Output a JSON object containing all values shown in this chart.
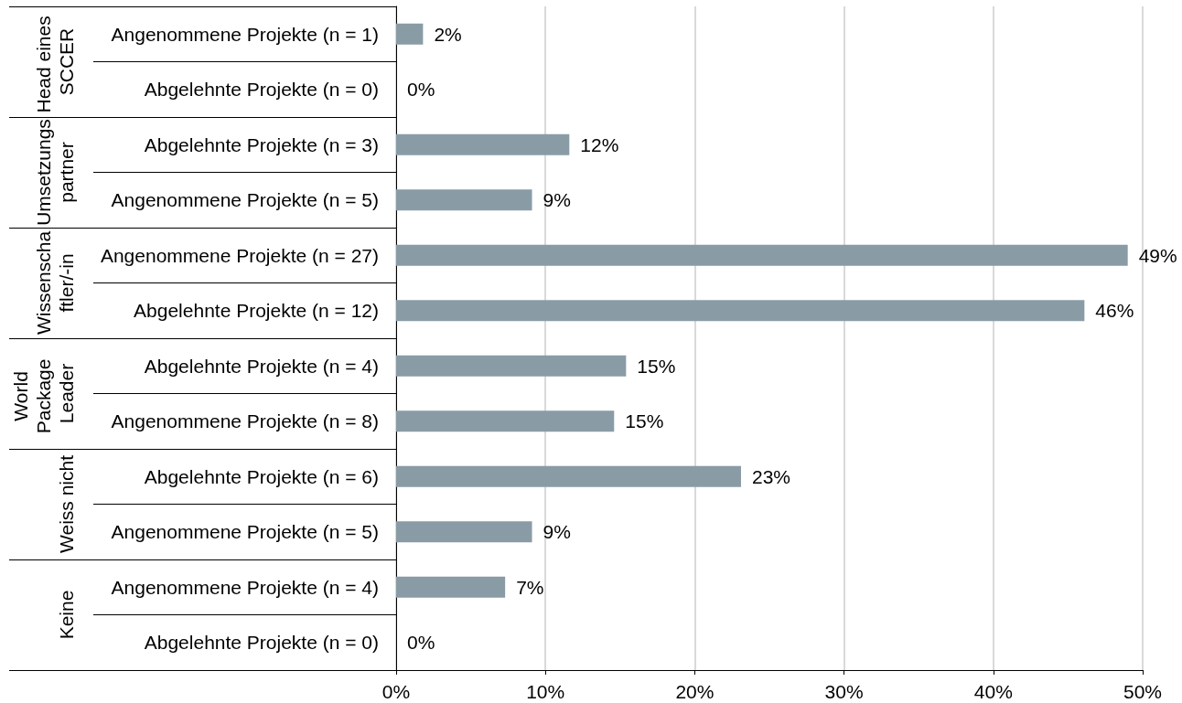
{
  "chart_data": {
    "type": "bar",
    "orientation": "horizontal",
    "categories": [
      "Angenommene Projekte (n = 1)",
      "Abgelehnte Projekte (n = 0)",
      "Abgelehnte Projekte (n = 3)",
      "Angenommene Projekte (n = 5)",
      "Angenommene Projekte (n = 27)",
      "Abgelehnte Projekte (n = 12)",
      "Abgelehnte Projekte (n = 4)",
      "Angenommene Projekte (n = 8)",
      "Abgelehnte Projekte (n = 6)",
      "Angenommene Projekte (n = 5)",
      "Angenommene Projekte (n = 4)",
      "Abgelehnte Projekte (n = 0)"
    ],
    "values": [
      1.8,
      0,
      11.6,
      9.1,
      49.0,
      46.1,
      15.4,
      14.6,
      23.1,
      9.1,
      7.3,
      0
    ],
    "value_labels": [
      "2%",
      "0%",
      "12%",
      "9%",
      "49%",
      "46%",
      "15%",
      "15%",
      "23%",
      "9%",
      "7%",
      "0%"
    ],
    "color": "#899ca6",
    "xlim": [
      0,
      50
    ],
    "xticks": [
      {
        "value": 0,
        "label": "0%"
      },
      {
        "value": 10,
        "label": "10%"
      },
      {
        "value": 20,
        "label": "20%"
      },
      {
        "value": 30,
        "label": "30%"
      },
      {
        "value": 40,
        "label": "40%"
      },
      {
        "value": 50,
        "label": "50%"
      }
    ],
    "grid": "x",
    "annotations": [
      "Head eines SCCER",
      "Umsetzungspartner",
      "Wissenschaftler/-in",
      "World Package Leader",
      "Weiss nicht",
      "Keine"
    ]
  }
}
